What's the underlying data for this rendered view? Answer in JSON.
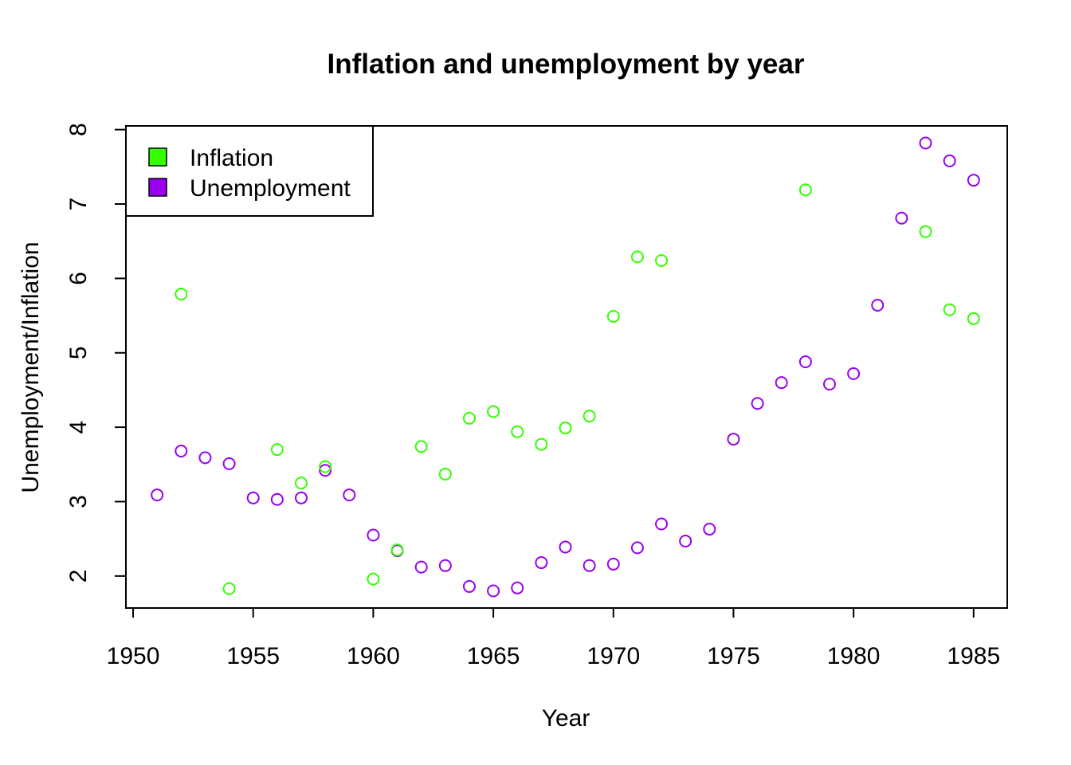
{
  "chart_data": {
    "type": "scatter",
    "title": "Inflation and unemployment by year",
    "xlabel": "Year",
    "ylabel": "Unemployment/Inflation",
    "xlim": [
      1949.7,
      1986.4
    ],
    "ylim": [
      1.57,
      8.05
    ],
    "xticks": [
      1950,
      1955,
      1960,
      1965,
      1970,
      1975,
      1980,
      1985
    ],
    "yticks": [
      2,
      3,
      4,
      5,
      6,
      7,
      8
    ],
    "grid": false,
    "legend_position": "top-left",
    "series": [
      {
        "name": "Inflation",
        "color": "#33ff00",
        "points": [
          {
            "x": 1952,
            "y": 5.79
          },
          {
            "x": 1954,
            "y": 1.83
          },
          {
            "x": 1956,
            "y": 3.7
          },
          {
            "x": 1957,
            "y": 3.25
          },
          {
            "x": 1958,
            "y": 3.47
          },
          {
            "x": 1960,
            "y": 1.96
          },
          {
            "x": 1961,
            "y": 2.35
          },
          {
            "x": 1962,
            "y": 3.74
          },
          {
            "x": 1963,
            "y": 3.37
          },
          {
            "x": 1964,
            "y": 4.12
          },
          {
            "x": 1965,
            "y": 4.21
          },
          {
            "x": 1966,
            "y": 3.94
          },
          {
            "x": 1967,
            "y": 3.77
          },
          {
            "x": 1968,
            "y": 3.99
          },
          {
            "x": 1969,
            "y": 4.15
          },
          {
            "x": 1970,
            "y": 5.49
          },
          {
            "x": 1971,
            "y": 6.29
          },
          {
            "x": 1972,
            "y": 6.24
          },
          {
            "x": 1978,
            "y": 7.19
          },
          {
            "x": 1983,
            "y": 6.63
          },
          {
            "x": 1984,
            "y": 5.58
          },
          {
            "x": 1985,
            "y": 5.46
          }
        ]
      },
      {
        "name": "Unemployment",
        "color": "#9900ee",
        "points": [
          {
            "x": 1951,
            "y": 3.09
          },
          {
            "x": 1952,
            "y": 3.68
          },
          {
            "x": 1953,
            "y": 3.59
          },
          {
            "x": 1954,
            "y": 3.51
          },
          {
            "x": 1955,
            "y": 3.05
          },
          {
            "x": 1956,
            "y": 3.03
          },
          {
            "x": 1957,
            "y": 3.05
          },
          {
            "x": 1958,
            "y": 3.42
          },
          {
            "x": 1959,
            "y": 3.09
          },
          {
            "x": 1960,
            "y": 2.55
          },
          {
            "x": 1961,
            "y": 2.34
          },
          {
            "x": 1962,
            "y": 2.12
          },
          {
            "x": 1963,
            "y": 2.14
          },
          {
            "x": 1964,
            "y": 1.86
          },
          {
            "x": 1965,
            "y": 1.8
          },
          {
            "x": 1966,
            "y": 1.84
          },
          {
            "x": 1967,
            "y": 2.18
          },
          {
            "x": 1968,
            "y": 2.39
          },
          {
            "x": 1969,
            "y": 2.14
          },
          {
            "x": 1970,
            "y": 2.16
          },
          {
            "x": 1971,
            "y": 2.38
          },
          {
            "x": 1972,
            "y": 2.7
          },
          {
            "x": 1973,
            "y": 2.47
          },
          {
            "x": 1974,
            "y": 2.63
          },
          {
            "x": 1975,
            "y": 3.84
          },
          {
            "x": 1976,
            "y": 4.32
          },
          {
            "x": 1977,
            "y": 4.6
          },
          {
            "x": 1978,
            "y": 4.88
          },
          {
            "x": 1979,
            "y": 4.58
          },
          {
            "x": 1980,
            "y": 4.72
          },
          {
            "x": 1981,
            "y": 5.64
          },
          {
            "x": 1982,
            "y": 6.81
          },
          {
            "x": 1983,
            "y": 7.82
          },
          {
            "x": 1984,
            "y": 7.58
          },
          {
            "x": 1985,
            "y": 7.32
          }
        ]
      }
    ]
  }
}
